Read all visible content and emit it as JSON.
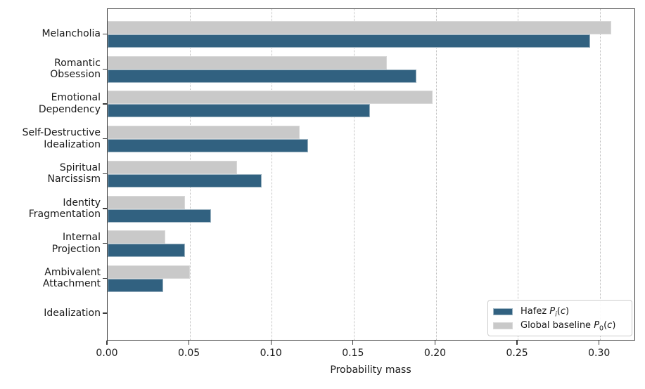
{
  "figure": {
    "background": "#ffffff",
    "spine_color": "#3c3c3c"
  },
  "chart_data": {
    "type": "bar",
    "orientation": "horizontal",
    "title": "",
    "xlabel": "Probability mass",
    "ylabel": "",
    "xlim": [
      0,
      0.322
    ],
    "grid": "vertical dotted gridlines at x ticks",
    "legend_position": "lower right",
    "x_tick_values": [
      0.0,
      0.05,
      0.1,
      0.15,
      0.2,
      0.25,
      0.3
    ],
    "x_tick_labels": [
      "0.00",
      "0.05",
      "0.10",
      "0.15",
      "0.20",
      "0.25",
      "0.30"
    ],
    "categories": [
      "Melancholia",
      "Romantic Obsession",
      "Emotional Dependency",
      "Self-Destructive Idealization",
      "Spiritual Narcissism",
      "Identity Fragmentation",
      "Internal Projection",
      "Ambivalent Attachment",
      "Idealization"
    ],
    "category_label_lines": [
      [
        "Melancholia"
      ],
      [
        "Romantic",
        "Obsession"
      ],
      [
        "Emotional",
        "Dependency"
      ],
      [
        "Self-Destructive",
        "Idealization"
      ],
      [
        "Spiritual",
        "Narcissism"
      ],
      [
        "Identity",
        "Fragmentation"
      ],
      [
        "Internal",
        "Projection"
      ],
      [
        "Ambivalent",
        "Attachment"
      ],
      [
        "Idealization"
      ]
    ],
    "series": [
      {
        "name": "Hafez Pi(c)",
        "color": "#316180",
        "values": [
          0.294,
          0.188,
          0.16,
          0.122,
          0.094,
          0.063,
          0.047,
          0.034,
          0.0
        ]
      },
      {
        "name": "Global baseline P0(c)",
        "color": "#c9c9c9",
        "values": [
          0.307,
          0.17,
          0.198,
          0.117,
          0.079,
          0.047,
          0.035,
          0.05,
          0.0
        ]
      }
    ]
  },
  "legend": {
    "items": [
      {
        "prefix": "Hafez ",
        "var": "P",
        "sub": "i",
        "open": "(",
        "arg": "c",
        "close": ")",
        "swatch_color": "#316180"
      },
      {
        "prefix": "Global baseline ",
        "var": "P",
        "sub": "0",
        "open": "(",
        "arg": "c",
        "close": ")",
        "swatch_color": "#c9c9c9"
      }
    ]
  }
}
